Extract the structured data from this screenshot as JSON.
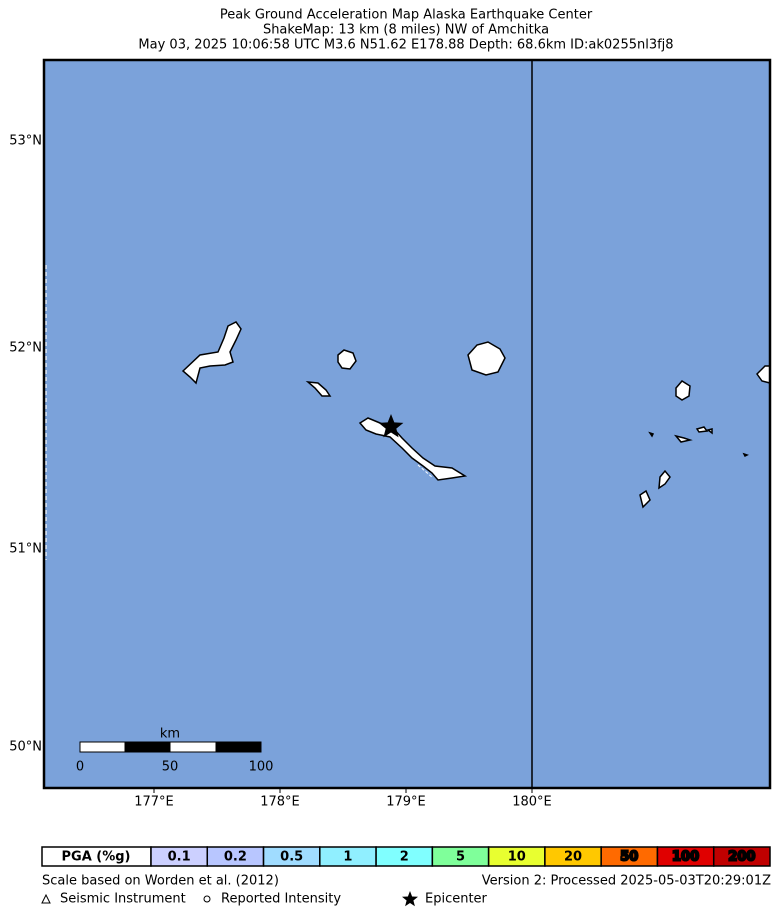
{
  "header": {
    "title": "Peak Ground Acceleration Map Alaska Earthquake Center",
    "subtitle": "ShakeMap: 13 km (8 miles) NW of Amchitka",
    "details": "May 03, 2025 10:06:58 UTC M3.6 N51.62 E178.88 Depth: 68.6km ID:ak0255nl3fj8"
  },
  "map": {
    "lat_labels": [
      "53°N",
      "52°N",
      "51°N",
      "50°N"
    ],
    "lon_labels": [
      "177°E",
      "178°E",
      "179°E",
      "180°E"
    ],
    "scale_bar": {
      "unit": "km",
      "labels": [
        "0",
        "50",
        "100"
      ]
    }
  },
  "legend": {
    "title": "PGA (%g)",
    "items": [
      {
        "label": "0.1",
        "color": "#ccd0ff"
      },
      {
        "label": "0.2",
        "color": "#b8c6ff"
      },
      {
        "label": "0.5",
        "color": "#a0dcff"
      },
      {
        "label": "1",
        "color": "#90efff"
      },
      {
        "label": "2",
        "color": "#80ffff"
      },
      {
        "label": "5",
        "color": "#7fff9a"
      },
      {
        "label": "10",
        "color": "#e8ff30"
      },
      {
        "label": "20",
        "color": "#ffc800"
      },
      {
        "label": "50",
        "color": "#ff6a00"
      },
      {
        "label": "100",
        "color": "#e00000"
      },
      {
        "label": "200",
        "color": "#c00000"
      }
    ]
  },
  "footer": {
    "reference": "Scale based on Worden et al. (2012)",
    "version": "Version 2: Processed 2025-05-03T20:29:01Z",
    "symbols": [
      "Seismic Instrument",
      "Reported Intensity",
      "Epicenter"
    ]
  }
}
